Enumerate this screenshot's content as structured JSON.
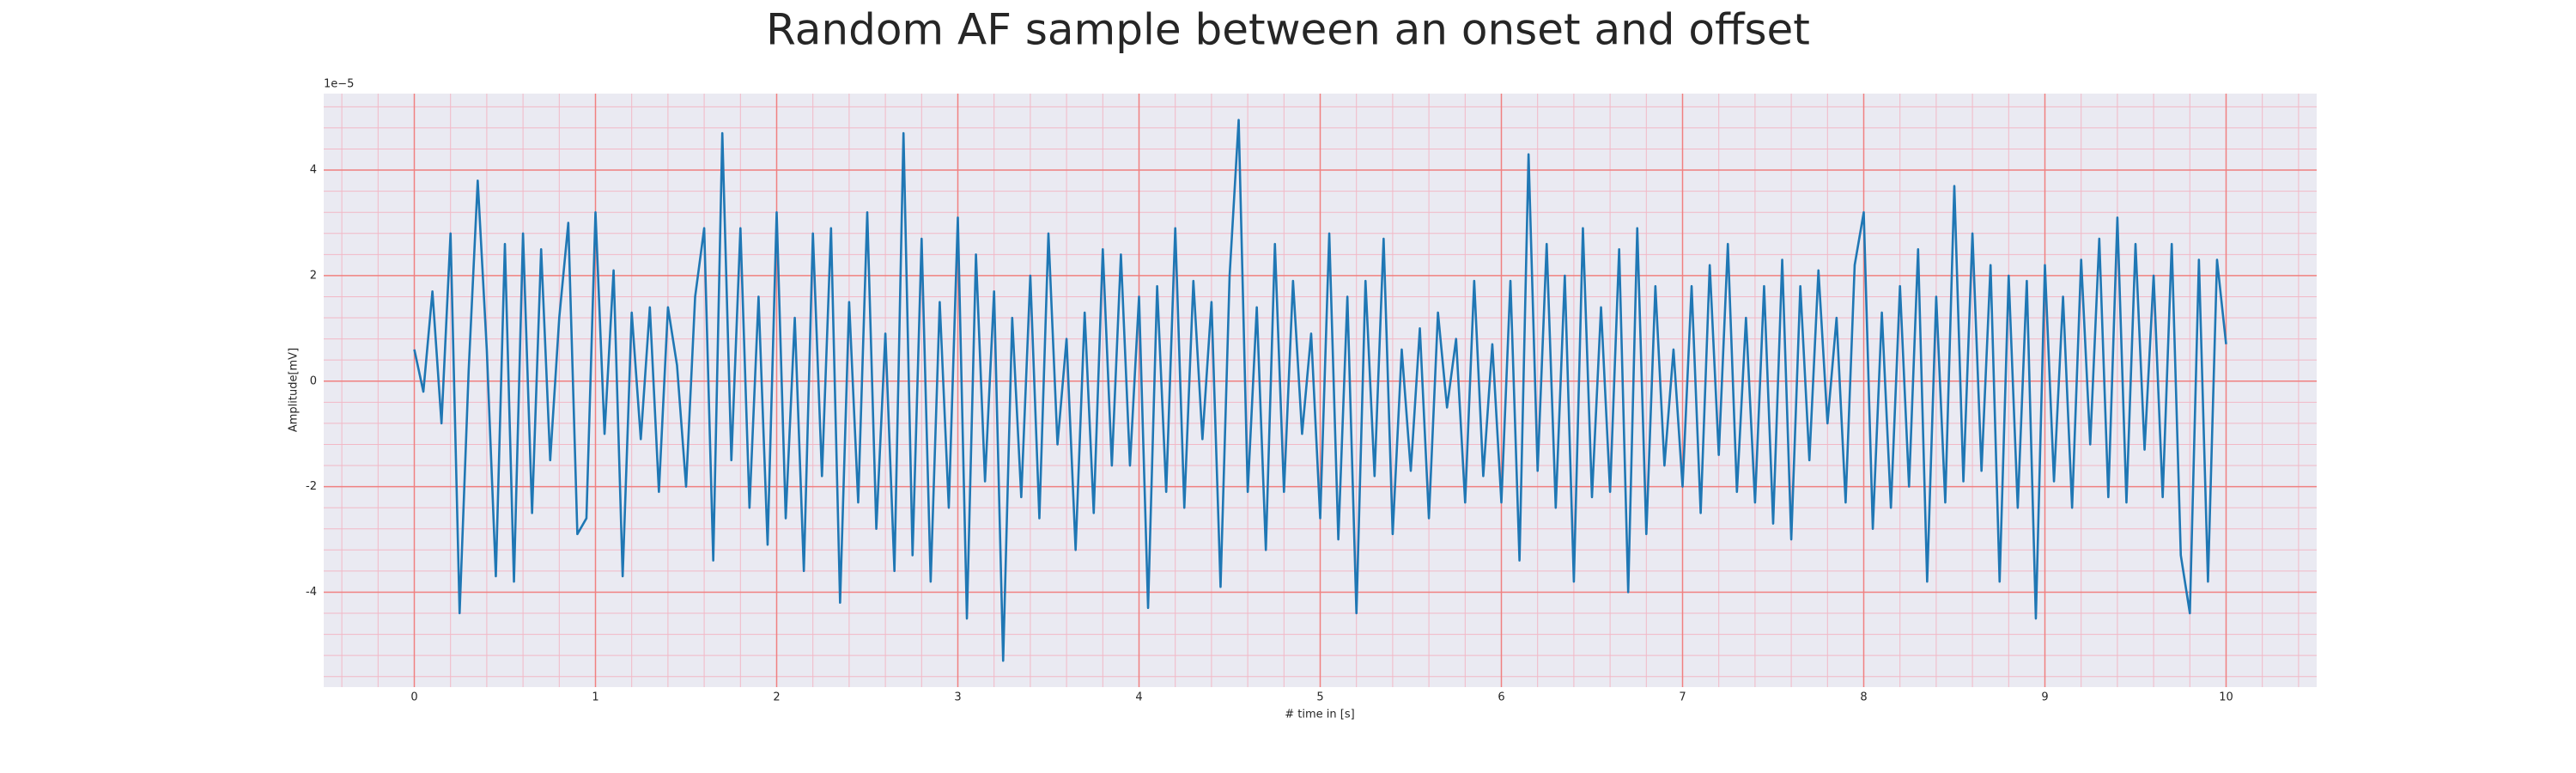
{
  "chart_data": {
    "type": "line",
    "title": "Random AF sample between an onset and offset",
    "x_label": "# time in [s]",
    "y_label": "Amplitude[mV]",
    "y_offset_label": "1e−5",
    "color": "#1f77b4",
    "grid": true,
    "minor_grid": true,
    "xlim": [
      -0.5,
      10.5
    ],
    "ylim": [
      -5.8,
      5.45
    ],
    "xticks": [
      0,
      1,
      2,
      3,
      4,
      5,
      6,
      7,
      8,
      9,
      10
    ],
    "yticks": [
      -4,
      -2,
      0,
      2,
      4
    ],
    "x": [
      0,
      0.05,
      0.1,
      0.15,
      0.2,
      0.25,
      0.3,
      0.35,
      0.4,
      0.45,
      0.5,
      0.55,
      0.6,
      0.65,
      0.7,
      0.75,
      0.8,
      0.85,
      0.9,
      0.95,
      1,
      1.05,
      1.1,
      1.15,
      1.2,
      1.25,
      1.3,
      1.35,
      1.4,
      1.45,
      1.5,
      1.55,
      1.6,
      1.65,
      1.7,
      1.75,
      1.8,
      1.85,
      1.9,
      1.95,
      2,
      2.05,
      2.1,
      2.15,
      2.2,
      2.25,
      2.3,
      2.35,
      2.4,
      2.45,
      2.5,
      2.55,
      2.6,
      2.65,
      2.7,
      2.75,
      2.8,
      2.85,
      2.9,
      2.95,
      3,
      3.05,
      3.1,
      3.15,
      3.2,
      3.25,
      3.3,
      3.35,
      3.4,
      3.45,
      3.5,
      3.55,
      3.6,
      3.65,
      3.7,
      3.75,
      3.8,
      3.85,
      3.9,
      3.95,
      4,
      4.05,
      4.1,
      4.15,
      4.2,
      4.25,
      4.3,
      4.35,
      4.4,
      4.45,
      4.5,
      4.55,
      4.6,
      4.65,
      4.7,
      4.75,
      4.8,
      4.85,
      4.9,
      4.95,
      5,
      5.05,
      5.1,
      5.15,
      5.2,
      5.25,
      5.3,
      5.35,
      5.4,
      5.45,
      5.5,
      5.55,
      5.6,
      5.65,
      5.7,
      5.75,
      5.8,
      5.85,
      5.9,
      5.95,
      6,
      6.05,
      6.1,
      6.15,
      6.2,
      6.25,
      6.3,
      6.35,
      6.4,
      6.45,
      6.5,
      6.55,
      6.6,
      6.65,
      6.7,
      6.75,
      6.8,
      6.85,
      6.9,
      6.95,
      7,
      7.05,
      7.1,
      7.15,
      7.2,
      7.25,
      7.3,
      7.35,
      7.4,
      7.45,
      7.5,
      7.55,
      7.6,
      7.65,
      7.7,
      7.75,
      7.8,
      7.85,
      7.9,
      7.95,
      8,
      8.05,
      8.1,
      8.15,
      8.2,
      8.25,
      8.3,
      8.35,
      8.4,
      8.45,
      8.5,
      8.55,
      8.6,
      8.65,
      8.7,
      8.75,
      8.8,
      8.85,
      8.9,
      8.95,
      9,
      9.05,
      9.1,
      9.15,
      9.2,
      9.25,
      9.3,
      9.35,
      9.4,
      9.45,
      9.5,
      9.55,
      9.6,
      9.65,
      9.7,
      9.75,
      9.8,
      9.85,
      9.9,
      9.95,
      10
    ],
    "values": [
      0.6,
      -0.2,
      1.7,
      -0.8,
      2.8,
      -4.4,
      0.2,
      3.8,
      0.6,
      -3.7,
      2.6,
      -3.8,
      2.8,
      -2.5,
      2.5,
      -1.5,
      1.2,
      3.0,
      -2.9,
      -2.6,
      3.2,
      -1.0,
      2.1,
      -3.7,
      1.3,
      -1.1,
      1.4,
      -2.1,
      1.4,
      0.3,
      -2.0,
      1.6,
      2.9,
      -3.4,
      4.7,
      -1.5,
      2.9,
      -2.4,
      1.6,
      -3.1,
      3.2,
      -2.6,
      1.2,
      -3.6,
      2.8,
      -1.8,
      2.9,
      -4.2,
      1.5,
      -2.3,
      3.2,
      -2.8,
      0.9,
      -3.6,
      4.7,
      -3.3,
      2.7,
      -3.8,
      1.5,
      -2.4,
      3.1,
      -4.5,
      2.4,
      -1.9,
      1.7,
      -5.3,
      1.2,
      -2.2,
      2.0,
      -2.6,
      2.8,
      -1.2,
      0.8,
      -3.2,
      1.3,
      -2.5,
      2.5,
      -1.6,
      2.4,
      -1.6,
      1.6,
      -4.3,
      1.8,
      -2.1,
      2.9,
      -2.4,
      1.9,
      -1.1,
      1.5,
      -3.9,
      2.0,
      4.95,
      -2.1,
      1.4,
      -3.2,
      2.6,
      -2.1,
      1.9,
      -1.0,
      0.9,
      -2.6,
      2.8,
      -3.0,
      1.6,
      -4.4,
      1.9,
      -1.8,
      2.7,
      -2.9,
      0.6,
      -1.7,
      1.0,
      -2.6,
      1.3,
      -0.5,
      0.8,
      -2.3,
      1.9,
      -1.8,
      0.7,
      -2.3,
      1.9,
      -3.4,
      4.3,
      -1.7,
      2.6,
      -2.4,
      2.0,
      -3.8,
      2.9,
      -2.2,
      1.4,
      -2.1,
      2.5,
      -4.0,
      2.9,
      -2.9,
      1.8,
      -1.6,
      0.6,
      -2.0,
      1.8,
      -2.5,
      2.2,
      -1.4,
      2.6,
      -2.1,
      1.2,
      -2.3,
      1.8,
      -2.7,
      2.3,
      -3.0,
      1.8,
      -1.5,
      2.1,
      -0.8,
      1.2,
      -2.3,
      2.2,
      3.2,
      -2.8,
      1.3,
      -2.4,
      1.8,
      -2.0,
      2.5,
      -3.8,
      1.6,
      -2.3,
      3.7,
      -1.9,
      2.8,
      -1.7,
      2.2,
      -3.8,
      2.0,
      -2.4,
      1.9,
      -4.5,
      2.2,
      -1.9,
      1.6,
      -2.4,
      2.3,
      -1.2,
      2.7,
      -2.2,
      3.1,
      -2.3,
      2.6,
      -1.3,
      2.0,
      -2.2,
      2.6,
      -3.3,
      -4.4,
      2.3,
      -3.8,
      2.3,
      0.7
    ]
  }
}
